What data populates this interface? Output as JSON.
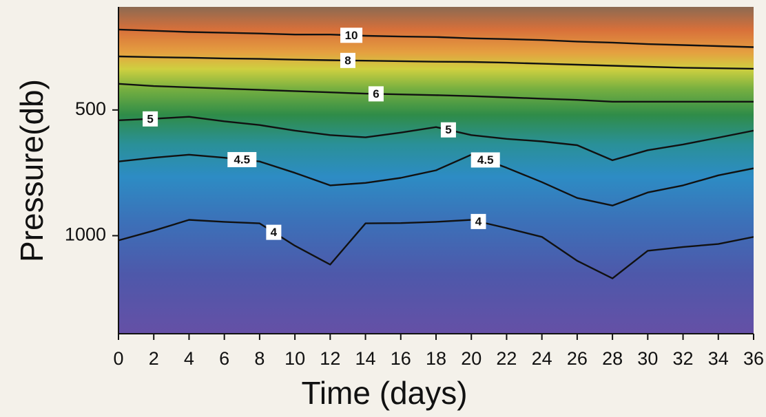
{
  "chart_data": {
    "type": "contour",
    "xlabel": "Time (days)",
    "ylabel": "Pressure(db)",
    "x": [
      0,
      2,
      4,
      6,
      8,
      10,
      12,
      14,
      16,
      18,
      20,
      22,
      24,
      26,
      28,
      30,
      32,
      34,
      36
    ],
    "xlim": [
      0,
      36
    ],
    "ylim": [
      1390,
      90
    ],
    "xticks": [
      0,
      2,
      4,
      6,
      8,
      10,
      12,
      14,
      16,
      18,
      20,
      22,
      24,
      26,
      28,
      30,
      32,
      34,
      36
    ],
    "yticks": [
      500,
      1000
    ],
    "series": [
      {
        "name": "10",
        "color": "#111111",
        "values": [
          180,
          185,
          190,
          193,
          196,
          200,
          200,
          205,
          208,
          210,
          215,
          218,
          222,
          228,
          232,
          238,
          242,
          246,
          250
        ]
      },
      {
        "name": "8",
        "color": "#111111",
        "values": [
          287,
          290,
          292,
          295,
          297,
          300,
          302,
          304,
          306,
          308,
          309,
          312,
          316,
          320,
          324,
          328,
          332,
          334,
          336
        ]
      },
      {
        "name": "6",
        "color": "#111111",
        "values": [
          396,
          405,
          410,
          415,
          420,
          425,
          430,
          435,
          438,
          441,
          445,
          450,
          455,
          460,
          467,
          467,
          467,
          467,
          467
        ]
      },
      {
        "name": "5",
        "color": "#111111",
        "values": [
          541,
          535,
          527,
          545,
          560,
          582,
          600,
          609,
          590,
          568,
          600,
          615,
          625,
          640,
          700,
          660,
          637,
          610,
          582
        ]
      },
      {
        "name": "4.5",
        "color": "#111111",
        "values": [
          705,
          690,
          678,
          690,
          705,
          750,
          800,
          790,
          770,
          740,
          678,
          730,
          787,
          850,
          880,
          828,
          800,
          760,
          732
        ]
      },
      {
        "name": "4",
        "color": "#111111",
        "values": [
          1019,
          980,
          937,
          945,
          951,
          1040,
          1115,
          951,
          950,
          945,
          937,
          970,
          1005,
          1100,
          1170,
          1060,
          1045,
          1033,
          1005
        ]
      }
    ]
  }
}
